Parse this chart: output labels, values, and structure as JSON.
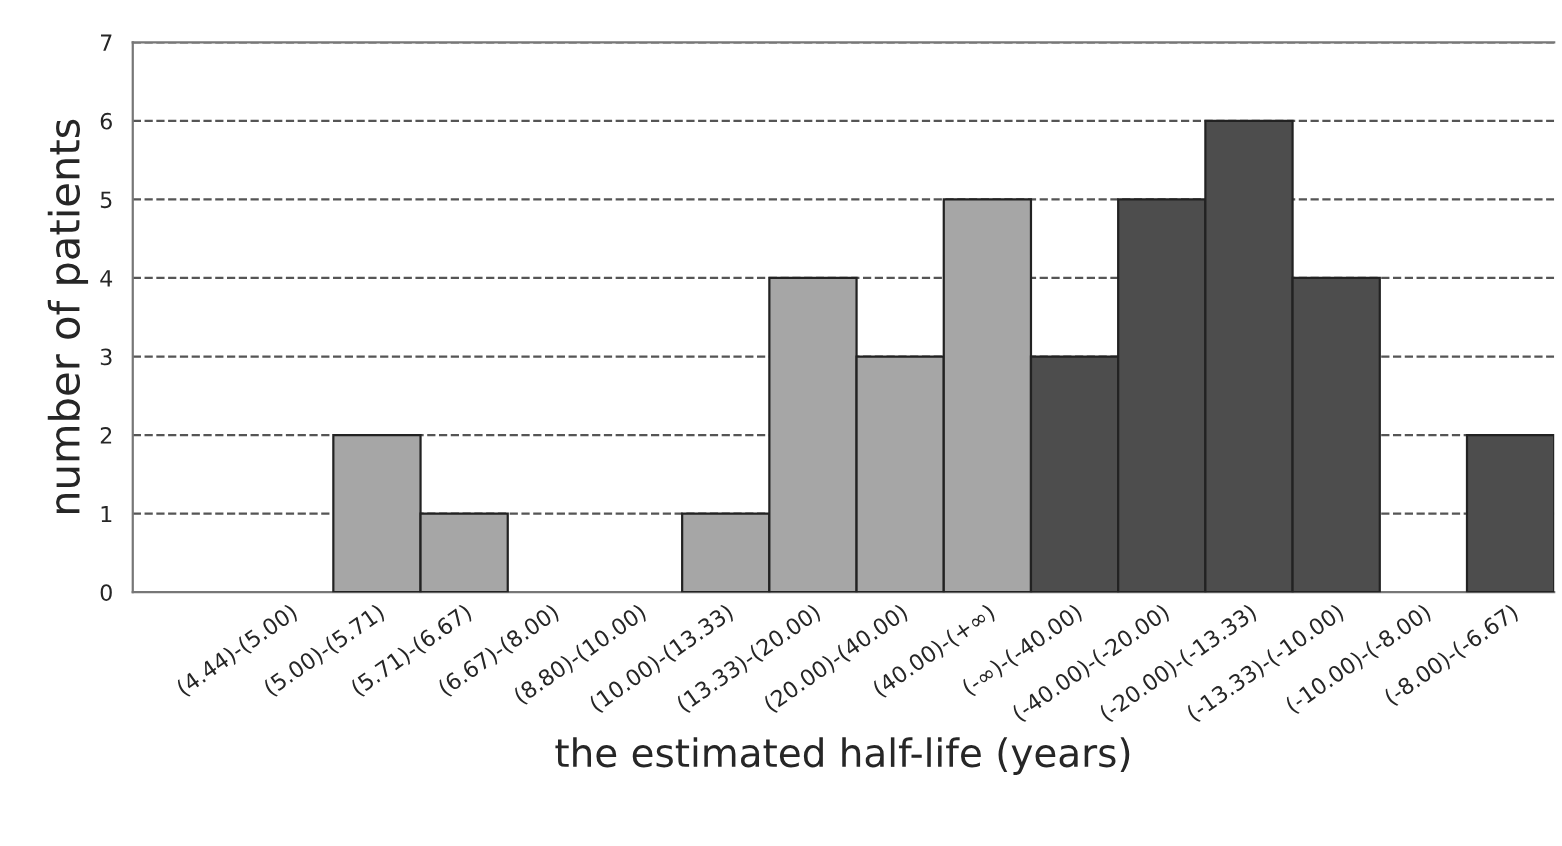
{
  "chart_data": {
    "type": "bar",
    "xlabel": "the estimated half-life (years)",
    "ylabel": "number of patients",
    "categories": [
      "(4.44)-(5.00)",
      "(5.00)-(5.71)",
      "(5.71)-(6.67)",
      "(6.67)-(8.00)",
      "(8.80)-(10.00)",
      "(10.00)-(13.33)",
      "(13.33)-(20.00)",
      "(20.00)-(40.00)",
      "(40.00)-(+∞)",
      "(-∞)-(-40.00)",
      "(-40.00)-(-20.00)",
      "(-20.00)-(-13.33)",
      "(-13.33)-(-10.00)",
      "(-10.00)-(-8.00)",
      "(-8.00)-(-6.67)"
    ],
    "values": [
      0,
      2,
      1,
      0,
      0,
      1,
      4,
      3,
      5,
      3,
      5,
      6,
      4,
      0,
      2
    ],
    "colors": [
      "#a6a6a6",
      "#a6a6a6",
      "#a6a6a6",
      "#a6a6a6",
      "#a6a6a6",
      "#a6a6a6",
      "#a6a6a6",
      "#a6a6a6",
      "#a6a6a6",
      "#4d4d4d",
      "#4d4d4d",
      "#4d4d4d",
      "#4d4d4d",
      "#4d4d4d",
      "#4d4d4d"
    ],
    "ylim": [
      0,
      7
    ],
    "yticks": [
      0,
      1,
      2,
      3,
      4,
      5,
      6,
      7
    ],
    "grid": "y",
    "line_style": "dashed"
  }
}
